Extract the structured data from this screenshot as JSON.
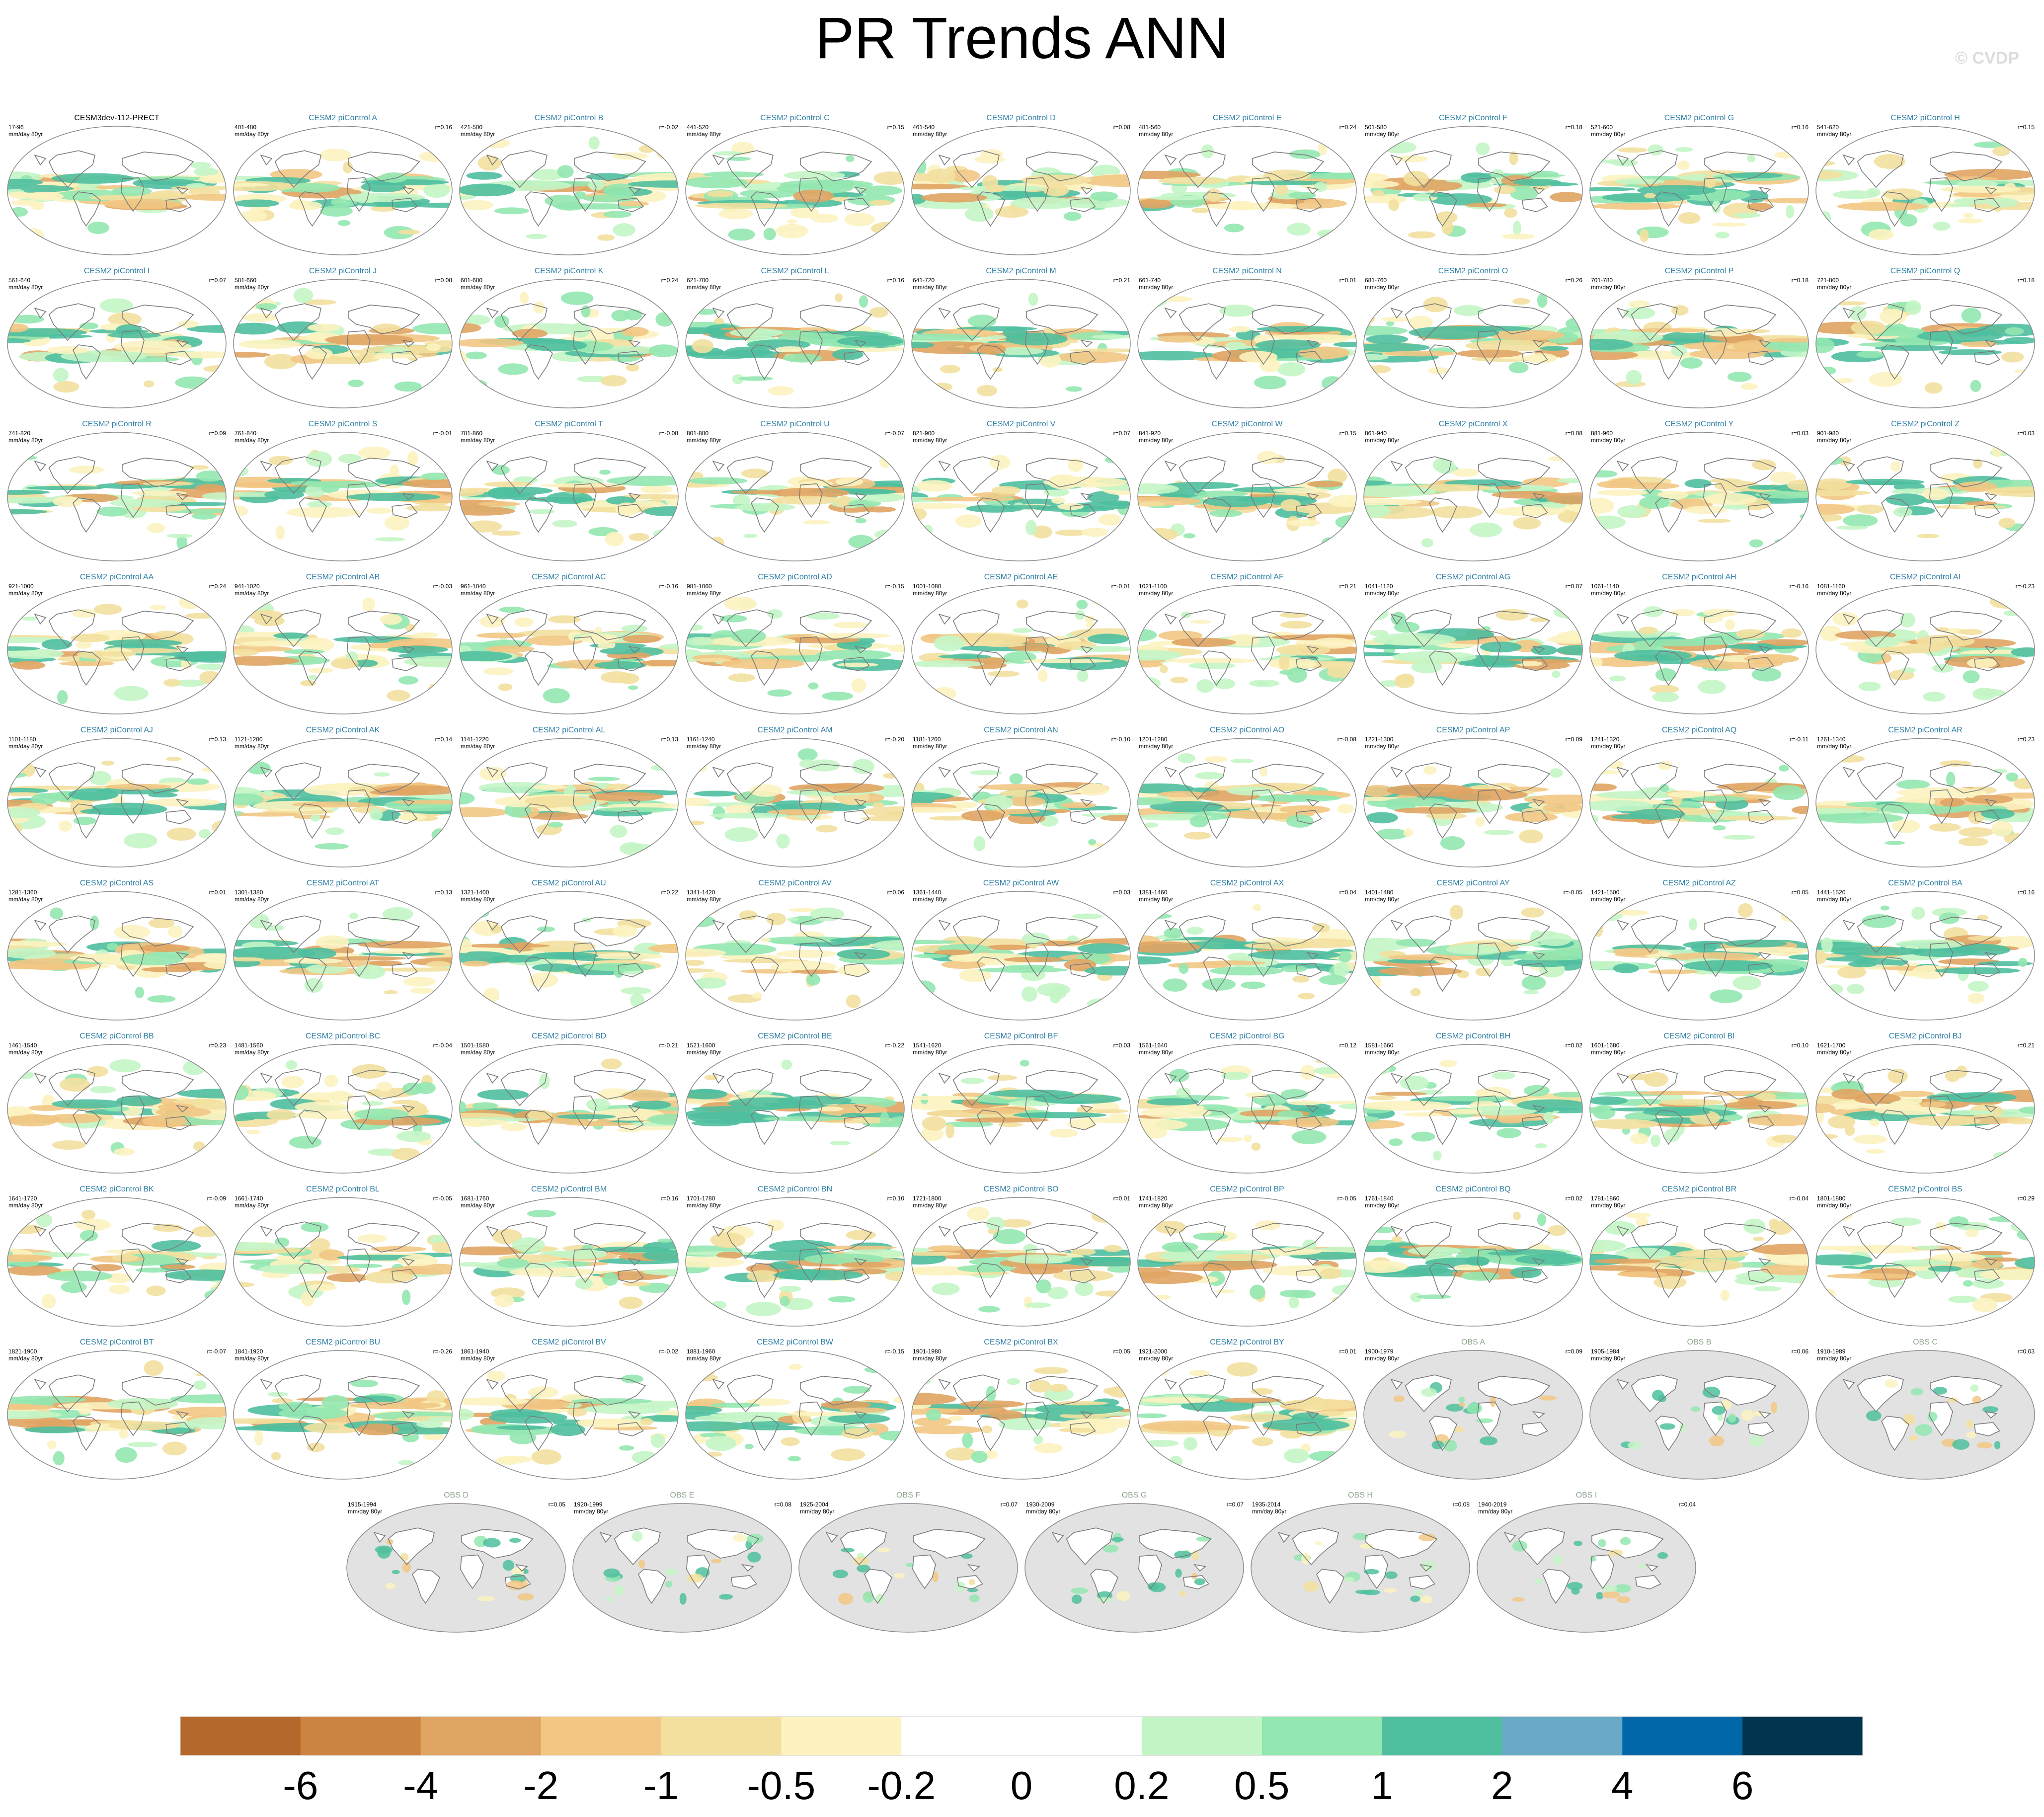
{
  "title": "PR Trends ANN",
  "copyright": "© CVDP",
  "units": "mm/day 80yr",
  "chart_data": {
    "type": "heatmap",
    "title": "PR Trends ANN",
    "description_of_maps": "Global maps of annual precipitation trends, 80-year segments",
    "colorbar": {
      "labels": [
        "-6",
        "-4",
        "-2",
        "-1",
        "-0.5",
        "-0.2",
        "0",
        "0.2",
        "0.5",
        "1",
        "2",
        "4",
        "6"
      ],
      "colors": [
        "#b5682b",
        "#cc8540",
        "#e0a463",
        "#f2c784",
        "#f3e09e",
        "#fcf3c0",
        "#ffffff",
        "#ffffff",
        "#c4f5c6",
        "#93e7b0",
        "#4fbf9f",
        "#6aa9c8",
        "#0068a8",
        "#00344f"
      ]
    },
    "panels": [
      {
        "name": "CESM3dev-112-PRECT",
        "years": "17-96",
        "r": "",
        "type": "model",
        "color": "#000000"
      },
      {
        "name": "CESM2 piControl A",
        "years": "401-480",
        "r": "r=0.16",
        "type": "model",
        "color": "#2f7fa6"
      },
      {
        "name": "CESM2 piControl B",
        "years": "421-500",
        "r": "r=-0.02",
        "type": "model",
        "color": "#2f7fa6"
      },
      {
        "name": "CESM2 piControl C",
        "years": "441-520",
        "r": "r=0.15",
        "type": "model",
        "color": "#2f7fa6"
      },
      {
        "name": "CESM2 piControl D",
        "years": "461-540",
        "r": "r=0.08",
        "type": "model",
        "color": "#2f7fa6"
      },
      {
        "name": "CESM2 piControl E",
        "years": "481-560",
        "r": "r=0.24",
        "type": "model",
        "color": "#2f7fa6"
      },
      {
        "name": "CESM2 piControl F",
        "years": "501-580",
        "r": "r=0.18",
        "type": "model",
        "color": "#2f7fa6"
      },
      {
        "name": "CESM2 piControl G",
        "years": "521-600",
        "r": "r=0.16",
        "type": "model",
        "color": "#2f7fa6"
      },
      {
        "name": "CESM2 piControl H",
        "years": "541-620",
        "r": "r=0.15",
        "type": "model",
        "color": "#2f7fa6"
      },
      {
        "name": "CESM2 piControl I",
        "years": "561-640",
        "r": "r=0.07",
        "type": "model",
        "color": "#2f7fa6"
      },
      {
        "name": "CESM2 piControl J",
        "years": "581-660",
        "r": "r=0.08",
        "type": "model",
        "color": "#2f7fa6"
      },
      {
        "name": "CESM2 piControl K",
        "years": "601-680",
        "r": "r=0.24",
        "type": "model",
        "color": "#2f7fa6"
      },
      {
        "name": "CESM2 piControl L",
        "years": "621-700",
        "r": "r=0.16",
        "type": "model",
        "color": "#2f7fa6"
      },
      {
        "name": "CESM2 piControl M",
        "years": "641-720",
        "r": "r=0.21",
        "type": "model",
        "color": "#2f7fa6"
      },
      {
        "name": "CESM2 piControl N",
        "years": "661-740",
        "r": "r=0.01",
        "type": "model",
        "color": "#2f7fa6"
      },
      {
        "name": "CESM2 piControl O",
        "years": "681-760",
        "r": "r=0.26",
        "type": "model",
        "color": "#2f7fa6"
      },
      {
        "name": "CESM2 piControl P",
        "years": "701-780",
        "r": "r=0.18",
        "type": "model",
        "color": "#2f7fa6"
      },
      {
        "name": "CESM2 piControl Q",
        "years": "721-800",
        "r": "r=0.18",
        "type": "model",
        "color": "#2f7fa6"
      },
      {
        "name": "CESM2 piControl R",
        "years": "741-820",
        "r": "r=0.09",
        "type": "model",
        "color": "#2f7fa6"
      },
      {
        "name": "CESM2 piControl S",
        "years": "761-840",
        "r": "r=-0.01",
        "type": "model",
        "color": "#2f7fa6"
      },
      {
        "name": "CESM2 piControl T",
        "years": "781-860",
        "r": "r=-0.08",
        "type": "model",
        "color": "#2f7fa6"
      },
      {
        "name": "CESM2 piControl U",
        "years": "801-880",
        "r": "r=-0.07",
        "type": "model",
        "color": "#2f7fa6"
      },
      {
        "name": "CESM2 piControl V",
        "years": "821-900",
        "r": "r=0.07",
        "type": "model",
        "color": "#2f7fa6"
      },
      {
        "name": "CESM2 piControl W",
        "years": "841-920",
        "r": "r=0.15",
        "type": "model",
        "color": "#2f7fa6"
      },
      {
        "name": "CESM2 piControl X",
        "years": "861-940",
        "r": "r=0.08",
        "type": "model",
        "color": "#2f7fa6"
      },
      {
        "name": "CESM2 piControl Y",
        "years": "881-960",
        "r": "r=0.03",
        "type": "model",
        "color": "#2f7fa6"
      },
      {
        "name": "CESM2 piControl Z",
        "years": "901-980",
        "r": "r=0.03",
        "type": "model",
        "color": "#2f7fa6"
      },
      {
        "name": "CESM2 piControl AA",
        "years": "921-1000",
        "r": "r=0.24",
        "type": "model",
        "color": "#2f7fa6"
      },
      {
        "name": "CESM2 piControl AB",
        "years": "941-1020",
        "r": "r=-0.03",
        "type": "model",
        "color": "#2f7fa6"
      },
      {
        "name": "CESM2 piControl AC",
        "years": "961-1040",
        "r": "r=-0.16",
        "type": "model",
        "color": "#2f7fa6"
      },
      {
        "name": "CESM2 piControl AD",
        "years": "981-1060",
        "r": "r=-0.15",
        "type": "model",
        "color": "#2f7fa6"
      },
      {
        "name": "CESM2 piControl AE",
        "years": "1001-1080",
        "r": "r=-0.01",
        "type": "model",
        "color": "#2f7fa6"
      },
      {
        "name": "CESM2 piControl AF",
        "years": "1021-1100",
        "r": "r=0.21",
        "type": "model",
        "color": "#2f7fa6"
      },
      {
        "name": "CESM2 piControl AG",
        "years": "1041-1120",
        "r": "r=0.07",
        "type": "model",
        "color": "#2f7fa6"
      },
      {
        "name": "CESM2 piControl AH",
        "years": "1061-1140",
        "r": "r=-0.16",
        "type": "model",
        "color": "#2f7fa6"
      },
      {
        "name": "CESM2 piControl AI",
        "years": "1081-1160",
        "r": "r=-0.23",
        "type": "model",
        "color": "#2f7fa6"
      },
      {
        "name": "CESM2 piControl AJ",
        "years": "1101-1180",
        "r": "r=0.13",
        "type": "model",
        "color": "#2f7fa6"
      },
      {
        "name": "CESM2 piControl AK",
        "years": "1121-1200",
        "r": "r=0.14",
        "type": "model",
        "color": "#2f7fa6"
      },
      {
        "name": "CESM2 piControl AL",
        "years": "1141-1220",
        "r": "r=0.13",
        "type": "model",
        "color": "#2f7fa6"
      },
      {
        "name": "CESM2 piControl AM",
        "years": "1161-1240",
        "r": "r=-0.20",
        "type": "model",
        "color": "#2f7fa6"
      },
      {
        "name": "CESM2 piControl AN",
        "years": "1181-1260",
        "r": "r=-0.10",
        "type": "model",
        "color": "#2f7fa6"
      },
      {
        "name": "CESM2 piControl AO",
        "years": "1201-1280",
        "r": "r=-0.08",
        "type": "model",
        "color": "#2f7fa6"
      },
      {
        "name": "CESM2 piControl AP",
        "years": "1221-1300",
        "r": "r=0.09",
        "type": "model",
        "color": "#2f7fa6"
      },
      {
        "name": "CESM2 piControl AQ",
        "years": "1241-1320",
        "r": "r=-0.11",
        "type": "model",
        "color": "#2f7fa6"
      },
      {
        "name": "CESM2 piControl AR",
        "years": "1261-1340",
        "r": "r=0.23",
        "type": "model",
        "color": "#2f7fa6"
      },
      {
        "name": "CESM2 piControl AS",
        "years": "1281-1360",
        "r": "r=0.01",
        "type": "model",
        "color": "#2f7fa6"
      },
      {
        "name": "CESM2 piControl AT",
        "years": "1301-1380",
        "r": "r=0.13",
        "type": "model",
        "color": "#2f7fa6"
      },
      {
        "name": "CESM2 piControl AU",
        "years": "1321-1400",
        "r": "r=0.22",
        "type": "model",
        "color": "#2f7fa6"
      },
      {
        "name": "CESM2 piControl AV",
        "years": "1341-1420",
        "r": "r=0.06",
        "type": "model",
        "color": "#2f7fa6"
      },
      {
        "name": "CESM2 piControl AW",
        "years": "1361-1440",
        "r": "r=0.03",
        "type": "model",
        "color": "#2f7fa6"
      },
      {
        "name": "CESM2 piControl AX",
        "years": "1381-1460",
        "r": "r=0.04",
        "type": "model",
        "color": "#2f7fa6"
      },
      {
        "name": "CESM2 piControl AY",
        "years": "1401-1480",
        "r": "r=-0.05",
        "type": "model",
        "color": "#2f7fa6"
      },
      {
        "name": "CESM2 piControl AZ",
        "years": "1421-1500",
        "r": "r=0.05",
        "type": "model",
        "color": "#2f7fa6"
      },
      {
        "name": "CESM2 piControl BA",
        "years": "1441-1520",
        "r": "r=0.16",
        "type": "model",
        "color": "#2f7fa6"
      },
      {
        "name": "CESM2 piControl BB",
        "years": "1461-1540",
        "r": "r=0.23",
        "type": "model",
        "color": "#2f7fa6"
      },
      {
        "name": "CESM2 piControl BC",
        "years": "1481-1560",
        "r": "r=-0.04",
        "type": "model",
        "color": "#2f7fa6"
      },
      {
        "name": "CESM2 piControl BD",
        "years": "1501-1580",
        "r": "r=-0.21",
        "type": "model",
        "color": "#2f7fa6"
      },
      {
        "name": "CESM2 piControl BE",
        "years": "1521-1600",
        "r": "r=-0.22",
        "type": "model",
        "color": "#2f7fa6"
      },
      {
        "name": "CESM2 piControl BF",
        "years": "1541-1620",
        "r": "r=0.03",
        "type": "model",
        "color": "#2f7fa6"
      },
      {
        "name": "CESM2 piControl BG",
        "years": "1561-1640",
        "r": "r=0.12",
        "type": "model",
        "color": "#2f7fa6"
      },
      {
        "name": "CESM2 piControl BH",
        "years": "1581-1660",
        "r": "r=0.02",
        "type": "model",
        "color": "#2f7fa6"
      },
      {
        "name": "CESM2 piControl BI",
        "years": "1601-1680",
        "r": "r=0.10",
        "type": "model",
        "color": "#2f7fa6"
      },
      {
        "name": "CESM2 piControl BJ",
        "years": "1621-1700",
        "r": "r=0.21",
        "type": "model",
        "color": "#2f7fa6"
      },
      {
        "name": "CESM2 piControl BK",
        "years": "1641-1720",
        "r": "r=-0.09",
        "type": "model",
        "color": "#2f7fa6"
      },
      {
        "name": "CESM2 piControl BL",
        "years": "1661-1740",
        "r": "r=-0.05",
        "type": "model",
        "color": "#2f7fa6"
      },
      {
        "name": "CESM2 piControl BM",
        "years": "1681-1760",
        "r": "r=0.16",
        "type": "model",
        "color": "#2f7fa6"
      },
      {
        "name": "CESM2 piControl BN",
        "years": "1701-1780",
        "r": "r=0.10",
        "type": "model",
        "color": "#2f7fa6"
      },
      {
        "name": "CESM2 piControl BO",
        "years": "1721-1800",
        "r": "r=0.01",
        "type": "model",
        "color": "#2f7fa6"
      },
      {
        "name": "CESM2 piControl BP",
        "years": "1741-1820",
        "r": "r=-0.05",
        "type": "model",
        "color": "#2f7fa6"
      },
      {
        "name": "CESM2 piControl BQ",
        "years": "1761-1840",
        "r": "r=0.02",
        "type": "model",
        "color": "#2f7fa6"
      },
      {
        "name": "CESM2 piControl BR",
        "years": "1781-1860",
        "r": "r=-0.04",
        "type": "model",
        "color": "#2f7fa6"
      },
      {
        "name": "CESM2 piControl BS",
        "years": "1801-1880",
        "r": "r=0.29",
        "type": "model",
        "color": "#2f7fa6"
      },
      {
        "name": "CESM2 piControl BT",
        "years": "1821-1900",
        "r": "r=-0.07",
        "type": "model",
        "color": "#2f7fa6"
      },
      {
        "name": "CESM2 piControl BU",
        "years": "1841-1920",
        "r": "r=-0.26",
        "type": "model",
        "color": "#2f7fa6"
      },
      {
        "name": "CESM2 piControl BV",
        "years": "1861-1940",
        "r": "r=-0.02",
        "type": "model",
        "color": "#2f7fa6"
      },
      {
        "name": "CESM2 piControl BW",
        "years": "1881-1960",
        "r": "r=-0.15",
        "type": "model",
        "color": "#2f7fa6"
      },
      {
        "name": "CESM2 piControl BX",
        "years": "1901-1980",
        "r": "r=0.05",
        "type": "model",
        "color": "#2f7fa6"
      },
      {
        "name": "CESM2 piControl BY",
        "years": "1921-2000",
        "r": "r=0.01",
        "type": "model",
        "color": "#2f7fa6"
      },
      {
        "name": "OBS A",
        "years": "1900-1979",
        "r": "r=0.09",
        "type": "obs",
        "color": "#8fa58f"
      },
      {
        "name": "OBS B",
        "years": "1905-1984",
        "r": "r=0.06",
        "type": "obs",
        "color": "#8fa58f"
      },
      {
        "name": "OBS C",
        "years": "1910-1989",
        "r": "r=0.03",
        "type": "obs",
        "color": "#8fa58f"
      },
      {
        "name": "OBS D",
        "years": "1915-1994",
        "r": "r=0.05",
        "type": "obs",
        "color": "#8fa58f"
      },
      {
        "name": "OBS E",
        "years": "1920-1999",
        "r": "r=0.08",
        "type": "obs",
        "color": "#8fa58f"
      },
      {
        "name": "OBS F",
        "years": "1925-2004",
        "r": "r=0.07",
        "type": "obs",
        "color": "#8fa58f"
      },
      {
        "name": "OBS G",
        "years": "1930-2009",
        "r": "r=0.07",
        "type": "obs",
        "color": "#8fa58f"
      },
      {
        "name": "OBS H",
        "years": "1935-2014",
        "r": "r=0.08",
        "type": "obs",
        "color": "#8fa58f"
      },
      {
        "name": "OBS I",
        "years": "1940-2019",
        "r": "r=0.04",
        "type": "obs",
        "color": "#8fa58f"
      }
    ]
  }
}
